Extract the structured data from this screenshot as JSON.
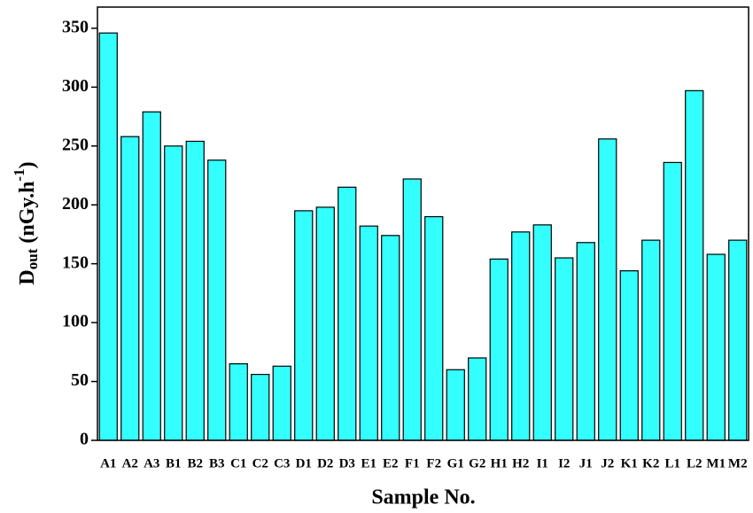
{
  "chart_data": {
    "type": "bar",
    "categories": [
      "A1",
      "A2",
      "A3",
      "B1",
      "B2",
      "B3",
      "C1",
      "C2",
      "C3",
      "D1",
      "D2",
      "D3",
      "E1",
      "E2",
      "F1",
      "F2",
      "G1",
      "G2",
      "H1",
      "H2",
      "I1",
      "I2",
      "J1",
      "J2",
      "K1",
      "K2",
      "L1",
      "L2",
      "M1",
      "M2"
    ],
    "values": [
      346,
      258,
      279,
      250,
      254,
      238,
      65,
      56,
      63,
      195,
      198,
      215,
      182,
      174,
      222,
      190,
      60,
      70,
      154,
      177,
      183,
      155,
      168,
      256,
      144,
      170,
      236,
      297,
      158,
      170
    ],
    "color": "#33ffff",
    "ylim": [
      0,
      368
    ],
    "yticks": [
      0,
      50,
      100,
      150,
      200,
      250,
      300,
      350
    ],
    "xlabel": "Sample No.",
    "ylabel_parts": [
      "D",
      "out",
      " (nGy.h",
      "-1",
      ")"
    ],
    "grid": false
  }
}
